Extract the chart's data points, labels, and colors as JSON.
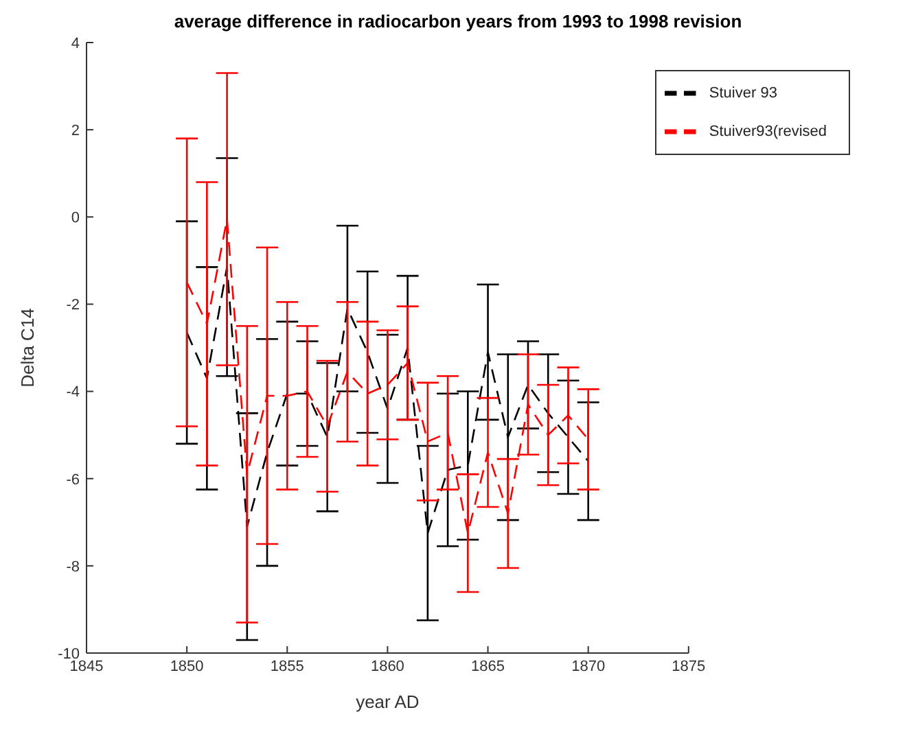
{
  "chart_data": {
    "type": "line",
    "title": "average difference in radiocarbon years from 1993 to 1998 revision",
    "xlabel": "year AD",
    "ylabel": "Delta C14",
    "x": [
      1850,
      1851,
      1852,
      1853,
      1854,
      1855,
      1856,
      1857,
      1858,
      1859,
      1860,
      1861,
      1862,
      1863,
      1864,
      1865,
      1866,
      1867,
      1868,
      1869,
      1870
    ],
    "series": [
      {
        "name": "Stuiver 93",
        "color": "#000000",
        "values": [
          -2.65,
          -3.7,
          -1.15,
          -7.1,
          -5.4,
          -4.05,
          -4.05,
          -5.05,
          -2.1,
          -3.1,
          -4.4,
          -3.0,
          -7.25,
          -5.8,
          -5.7,
          -3.1,
          -5.05,
          -3.85,
          -4.5,
          -5.05,
          -5.6
        ],
        "errors": [
          2.55,
          2.55,
          2.5,
          2.6,
          2.6,
          1.65,
          1.2,
          1.7,
          1.9,
          1.85,
          1.7,
          1.65,
          2.0,
          1.75,
          1.7,
          1.55,
          1.9,
          1.0,
          1.35,
          1.3,
          1.35
        ]
      },
      {
        "name": "Stuiver93(revised",
        "color": "#ff0000",
        "values": [
          -1.5,
          -2.45,
          -0.05,
          -5.9,
          -4.1,
          -4.1,
          -4.0,
          -4.8,
          -3.55,
          -4.05,
          -3.85,
          -3.35,
          -5.15,
          -4.95,
          -7.25,
          -5.4,
          -6.8,
          -4.3,
          -5.0,
          -4.55,
          -5.1
        ],
        "errors": [
          3.3,
          3.25,
          3.35,
          3.4,
          3.4,
          2.15,
          1.5,
          1.5,
          1.6,
          1.65,
          1.25,
          1.3,
          1.35,
          1.3,
          1.35,
          1.25,
          1.25,
          1.15,
          1.15,
          1.1,
          1.15
        ]
      }
    ],
    "xlim": [
      1845,
      1875
    ],
    "xticks": [
      1845,
      1850,
      1855,
      1860,
      1865,
      1870,
      1875
    ],
    "ylim": [
      -10,
      4
    ],
    "yticks": [
      -10,
      -8,
      -6,
      -4,
      -2,
      0,
      2,
      4
    ],
    "legend": "top right",
    "marker": "none",
    "line_style": "dashed",
    "grid": false
  }
}
